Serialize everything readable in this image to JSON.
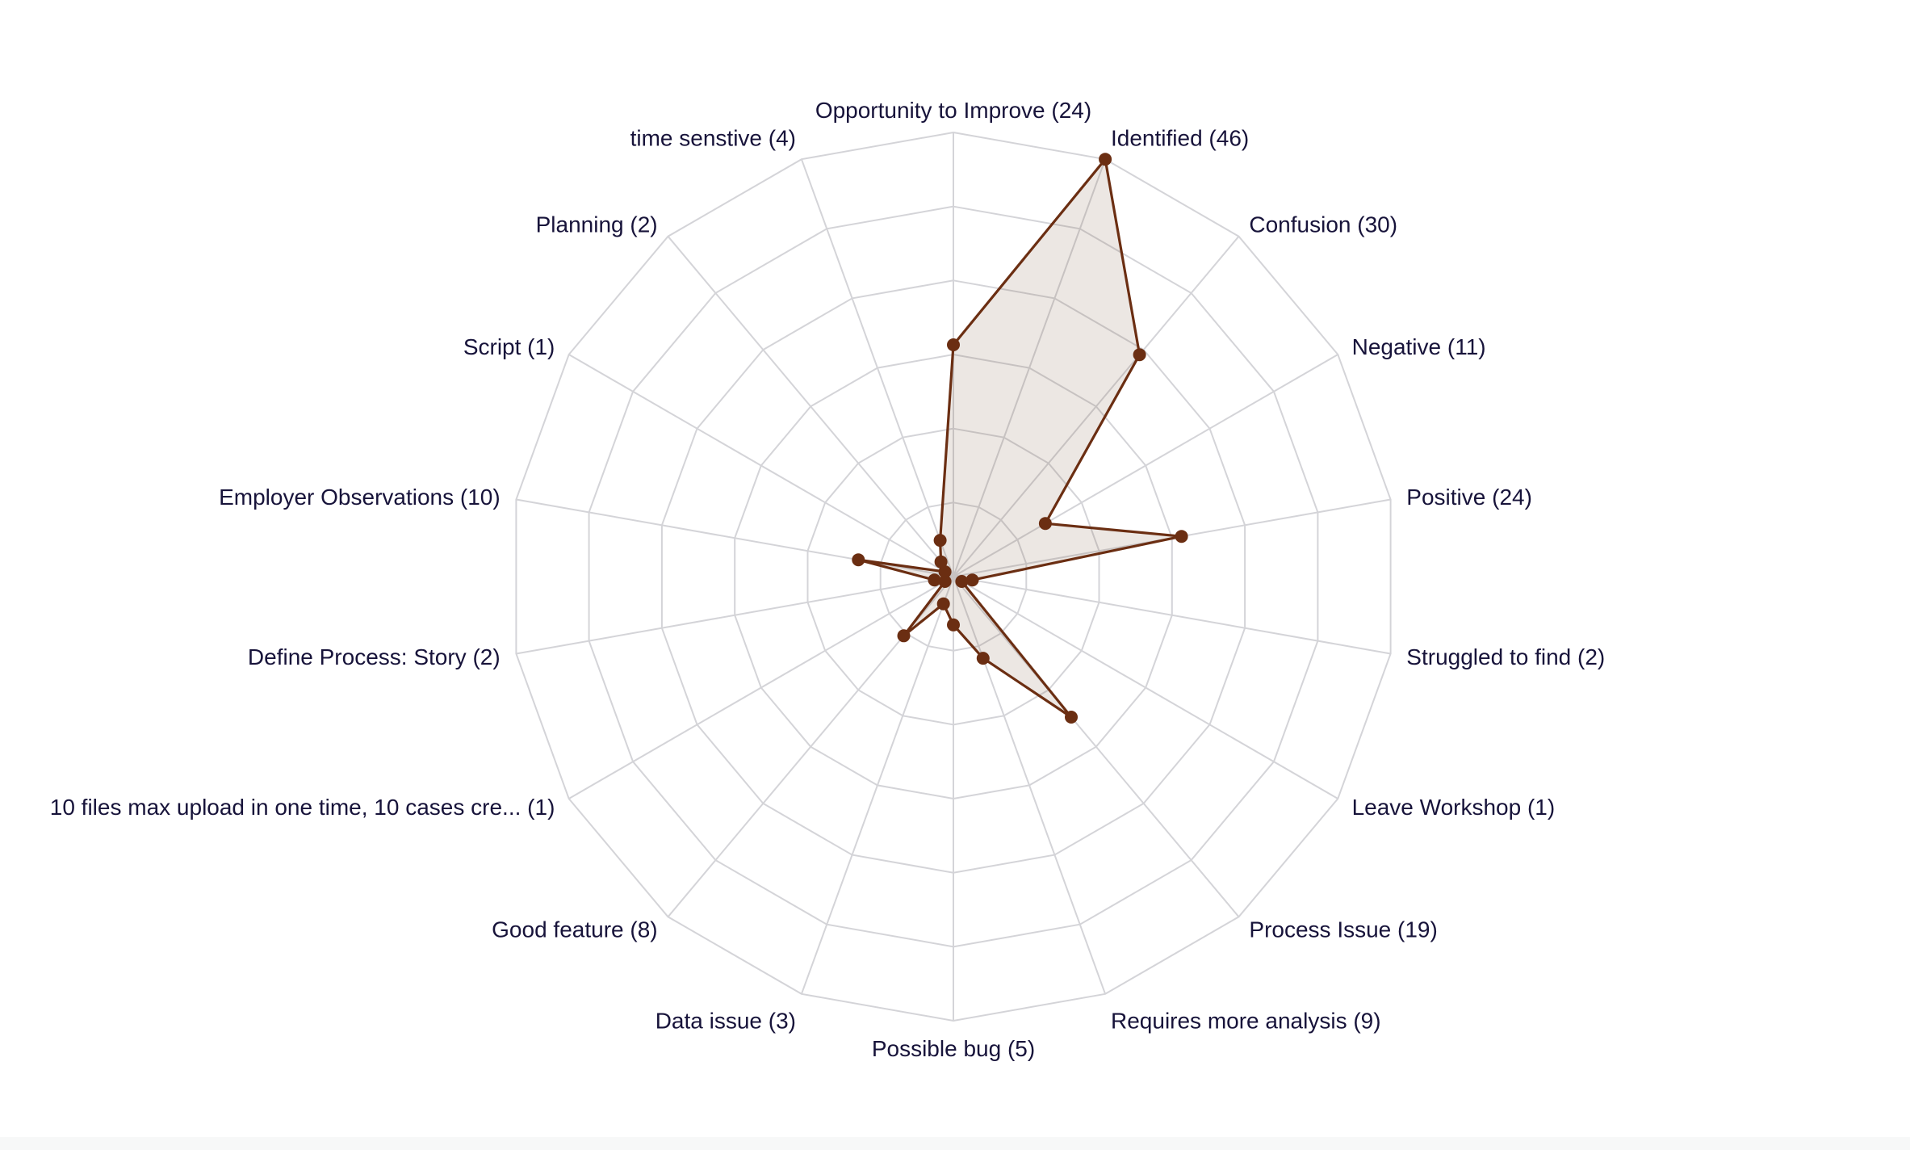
{
  "chart_data": {
    "type": "radar",
    "categories": [
      "Opportunity to Improve (24)",
      "Identified (46)",
      "Confusion (30)",
      "Negative (11)",
      "Positive (24)",
      "Struggled to find (2)",
      "Leave Workshop (1)",
      "Process Issue (19)",
      "Requires more analysis (9)",
      "Possible bug (5)",
      "Data issue (3)",
      "Good feature (8)",
      "10 files max upload in one time, 10 cases cre... (1)",
      "Define Process: Story (2)",
      "Employer Observations (10)",
      "Script (1)",
      "Planning (2)",
      "time senstive (4)"
    ],
    "values": [
      24,
      46,
      30,
      11,
      24,
      2,
      1,
      19,
      9,
      5,
      3,
      8,
      1,
      2,
      10,
      1,
      2,
      4
    ],
    "rlim": [
      0,
      46
    ],
    "rings": 6,
    "colors": {
      "line": "#6b2e12",
      "fill": "#78583c",
      "grid": "#d4d4d8",
      "label": "#17133a"
    }
  }
}
